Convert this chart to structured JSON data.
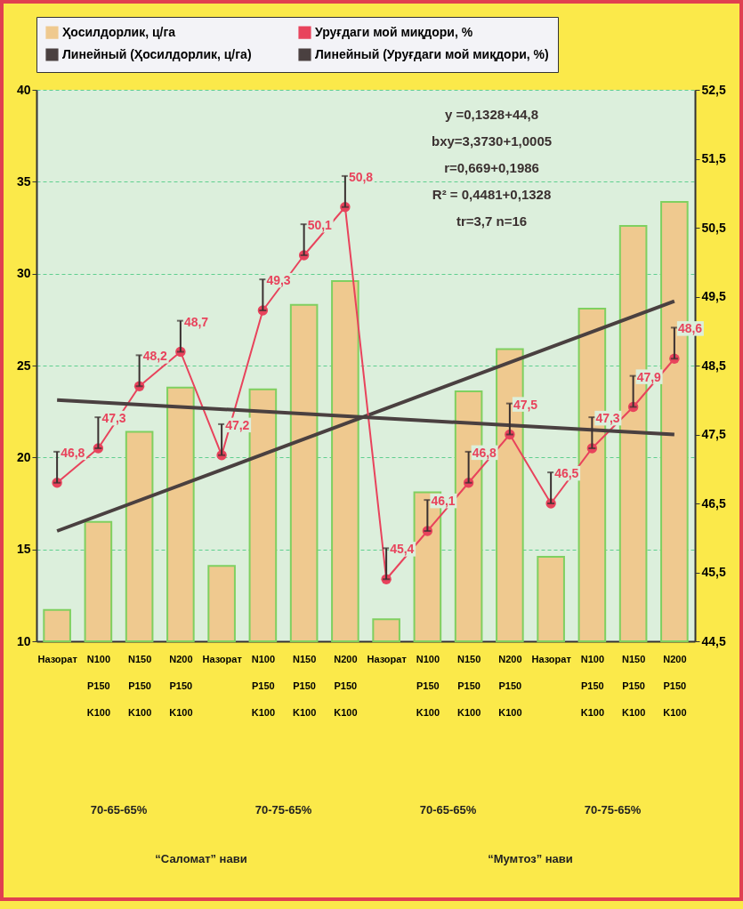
{
  "chart_data": {
    "type": "bar",
    "legend": "top",
    "grid": "y",
    "marker": "circle",
    "categories": [
      "Назорат",
      "N100 P150 K100",
      "N150 P150 K100",
      "N200 P150 K100",
      "Назорат",
      "N100 P150 K100",
      "N150 P150 K100",
      "N200 P150 K100",
      "Назорат",
      "N100 P150 K100",
      "N150 P150 K100",
      "N200 P150 K100",
      "Назорат",
      "N100 P150 K100",
      "N150 P150 K100",
      "N200 P150 K100"
    ],
    "ylim": [
      10,
      40
    ],
    "yticks": [
      10,
      15,
      20,
      25,
      30,
      35,
      40
    ],
    "y2lim": [
      44.5,
      52.5
    ],
    "y2ticks": [
      {
        "value": 44.5,
        "label": "44,5"
      },
      {
        "value": 45.5,
        "label": "45,5"
      },
      {
        "value": 46.5,
        "label": "46,5"
      },
      {
        "value": 47.5,
        "label": "47,5"
      },
      {
        "value": 48.5,
        "label": "48,5"
      },
      {
        "value": 49.5,
        "label": "49,5"
      },
      {
        "value": 50.5,
        "label": "50,5"
      },
      {
        "value": 51.5,
        "label": "51,5"
      },
      {
        "value": 52.5,
        "label": "52,5"
      }
    ],
    "series": [
      {
        "name": "Ҳосилдорлик, ц/га",
        "type": "bar",
        "color": "#efc98f",
        "values": [
          11.7,
          16.5,
          21.4,
          23.8,
          14.1,
          23.7,
          28.3,
          29.6,
          11.2,
          18.1,
          23.6,
          25.9,
          14.6,
          28.1,
          32.6,
          33.9
        ]
      },
      {
        "name": "Уруғдаги мой миқдори, %",
        "type": "line",
        "axis": "y2",
        "color": "#e8435c",
        "values": [
          46.8,
          47.3,
          48.2,
          48.7,
          47.2,
          49.3,
          50.1,
          50.8,
          45.4,
          46.1,
          46.8,
          47.5,
          46.5,
          47.3,
          47.9,
          48.6
        ],
        "errors": [
          [
            46.8,
            47.25
          ],
          [
            47.3,
            47.75
          ],
          [
            48.2,
            48.65
          ],
          [
            48.7,
            49.15
          ],
          [
            47.2,
            47.65
          ],
          [
            49.3,
            49.75
          ],
          [
            50.1,
            50.55
          ],
          [
            50.8,
            51.25
          ],
          [
            45.4,
            45.85
          ],
          [
            46.1,
            46.55
          ],
          [
            46.8,
            47.25
          ],
          [
            47.5,
            47.95
          ],
          [
            46.5,
            46.95
          ],
          [
            47.3,
            47.75
          ],
          [
            47.9,
            48.35
          ],
          [
            48.6,
            49.05
          ]
        ],
        "value_labels": [
          "46,8",
          "47,3",
          "48,2",
          "48,7",
          "47,2",
          "49,3",
          "50,1",
          "50,8",
          "45,4",
          "46,1",
          "46,8",
          "47,5",
          "46,5",
          "47,3",
          "47,9",
          "48,6"
        ]
      },
      {
        "name": "Линейный (Ҳосилдорлик, ц/га)",
        "type": "line",
        "marker": "none",
        "color": "#4a4040",
        "values": [
          16.0,
          null,
          null,
          null,
          null,
          null,
          null,
          null,
          null,
          null,
          null,
          null,
          null,
          null,
          null,
          28.5
        ]
      },
      {
        "name": "Линейный (Уруғдаги мой миқдори, %)",
        "type": "line",
        "axis": "y2",
        "marker": "none",
        "color": "#4a4040",
        "values": [
          48.0,
          null,
          null,
          null,
          null,
          null,
          null,
          null,
          null,
          null,
          null,
          null,
          null,
          null,
          null,
          47.5
        ]
      }
    ],
    "annotations": [
      "y =0,1328+44,8",
      "bxy=3,3730+1,0005",
      "r=0,669+0,1986",
      "R² = 0,4481+0,1328",
      "tr=3,7 n=16",
      "70-65-65%",
      "70-75-65%",
      "70-65-65%",
      "70-75-65%",
      "“Саломат” нави",
      "“Мумтоз” нави"
    ]
  }
}
